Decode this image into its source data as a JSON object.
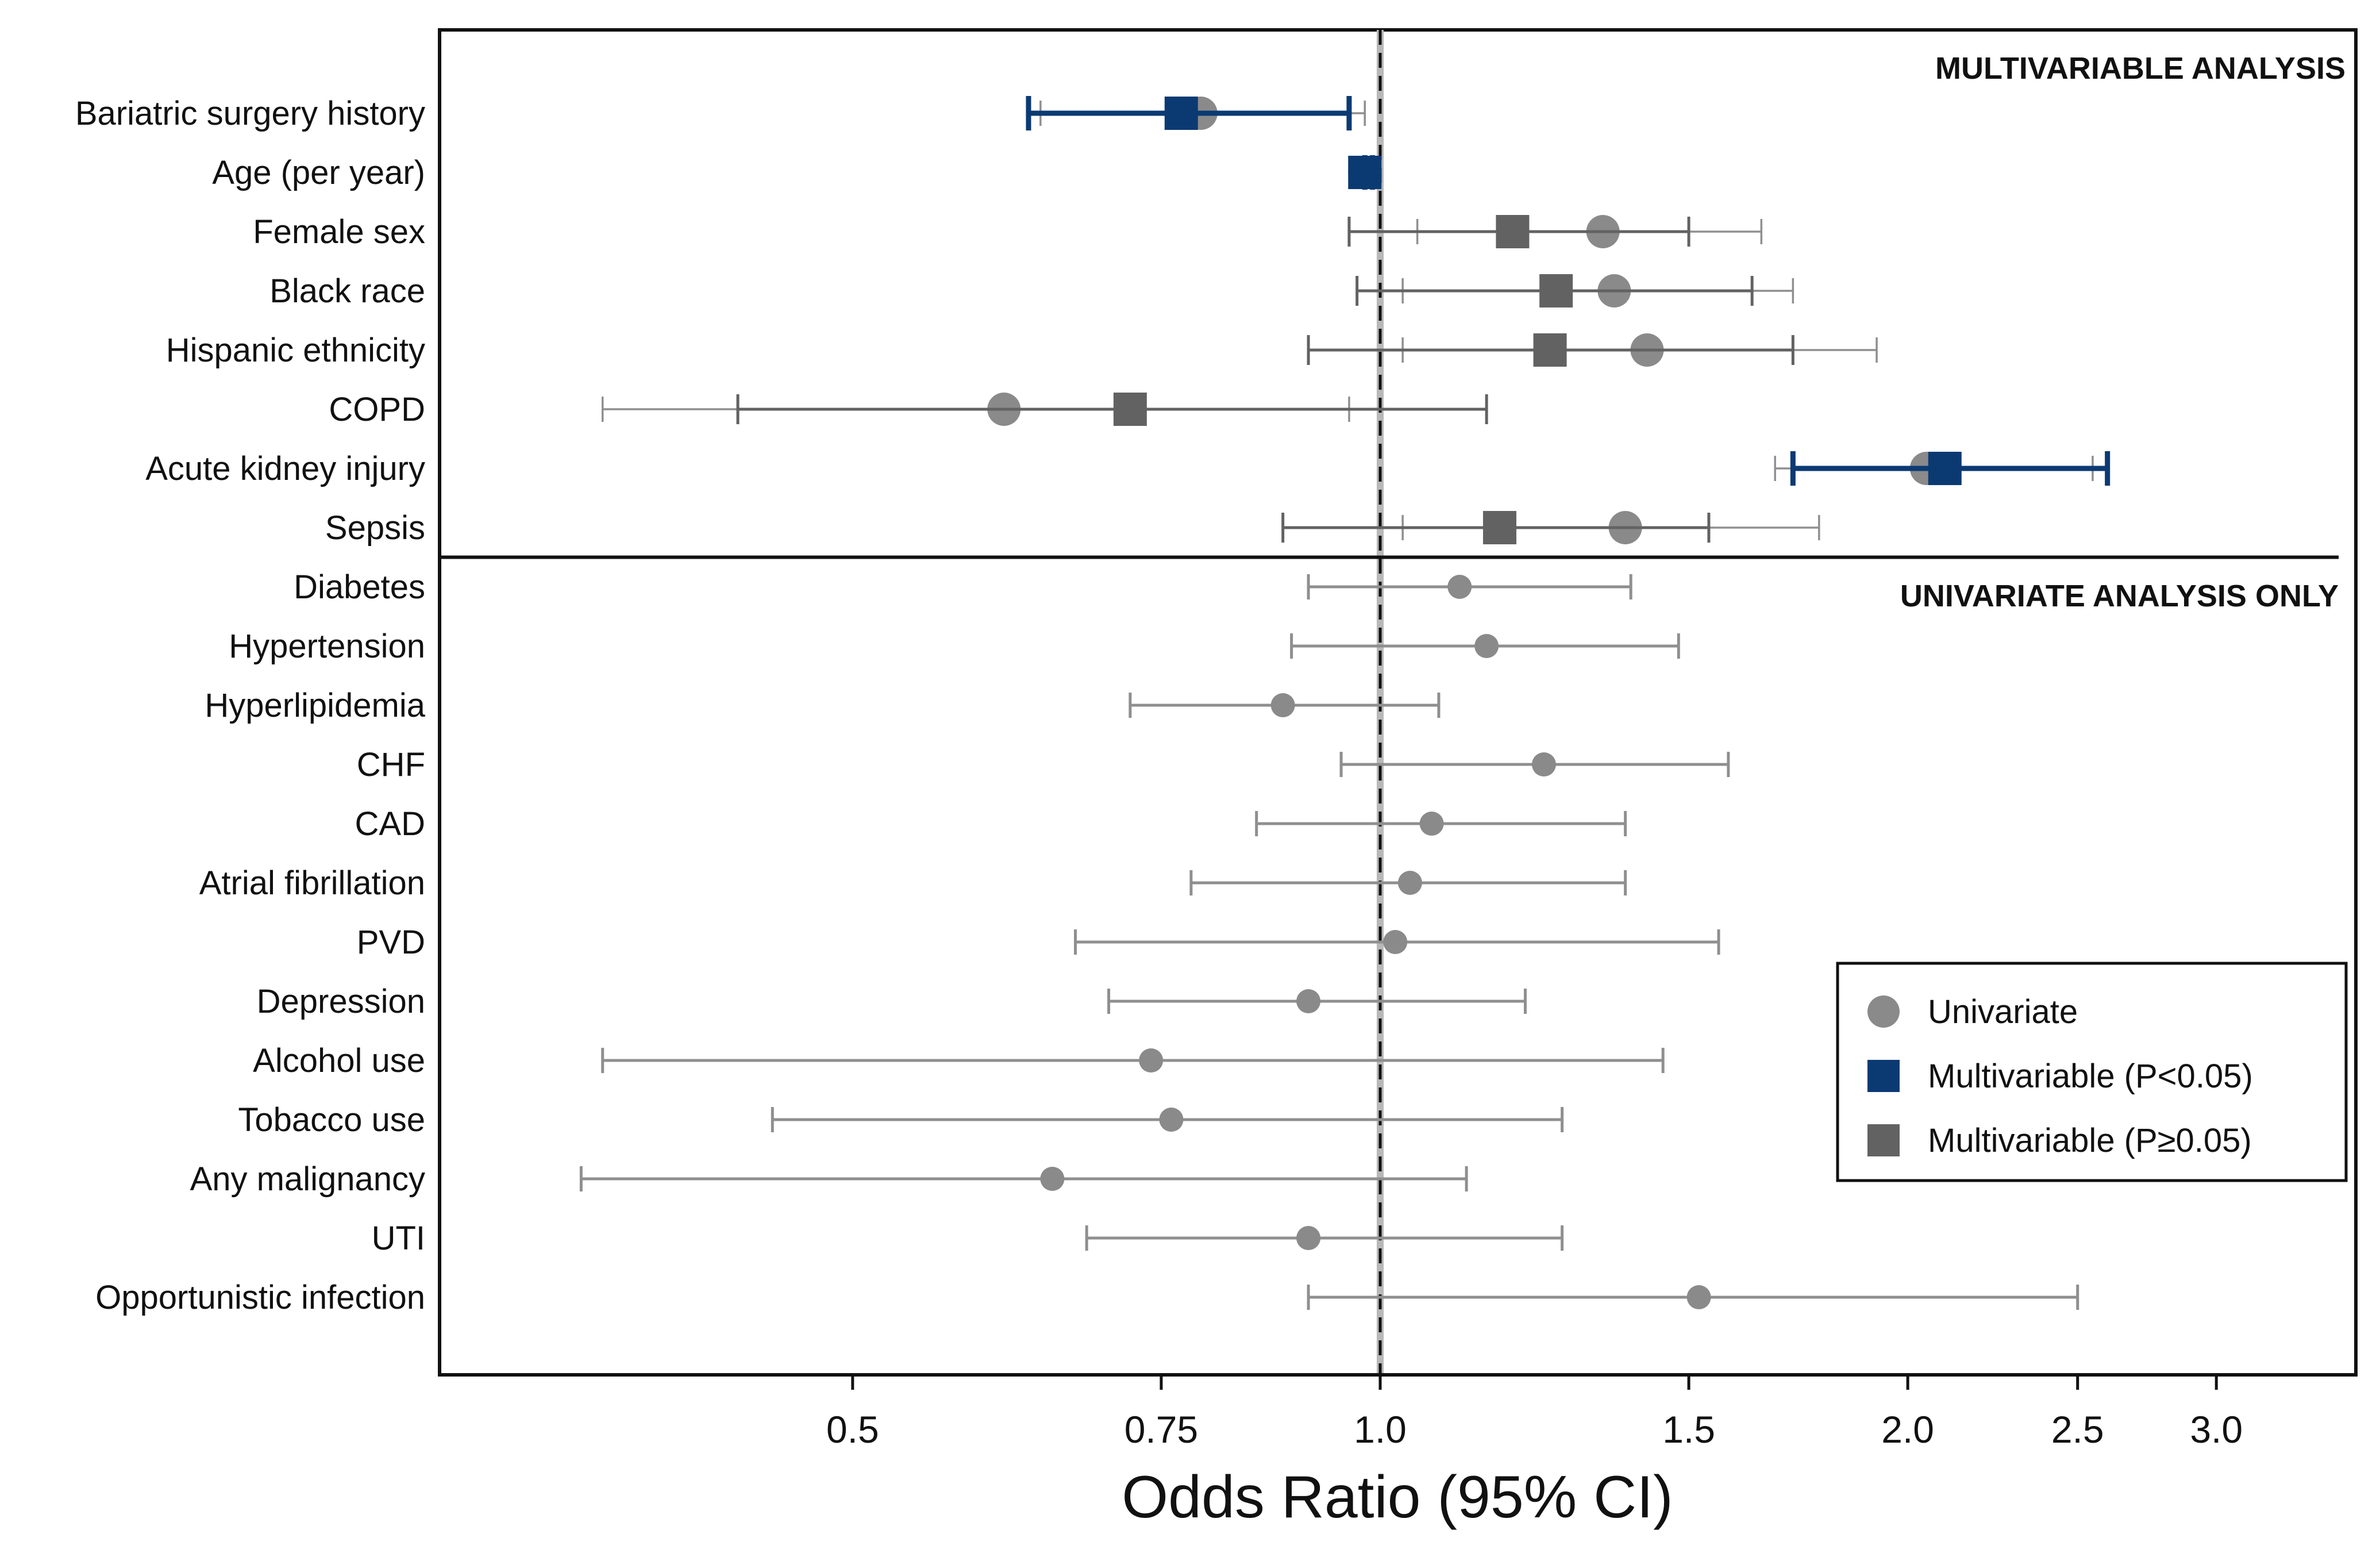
{
  "chart_data": {
    "type": "forest",
    "xlabel": "Odds Ratio (95% CI)",
    "x_scale": "log",
    "xlim": [
      0.33,
      3.5
    ],
    "x_ticks": [
      0.5,
      0.75,
      1.0,
      1.5,
      2.0,
      2.5,
      3.0
    ],
    "x_tick_labels": [
      "0.5",
      "0.75",
      "1.0",
      "1.5",
      "2.0",
      "2.5",
      "3.0"
    ],
    "reference_line": 1.0,
    "sections": [
      {
        "label": "MULTIVARIABLE ANALYSIS",
        "rows": [
          0,
          7
        ]
      },
      {
        "label": "UNIVARIATE ANALYSIS ONLY",
        "rows": [
          8,
          20
        ]
      }
    ],
    "colors": {
      "univariate": "#8a8a8a",
      "multivariable_significant": "#0b3a73",
      "multivariable_nonsignificant": "#626262"
    },
    "legend": {
      "placement": "bottom-right",
      "entries": [
        {
          "label": "Univariate",
          "marker": "circle",
          "color_key": "univariate"
        },
        {
          "label": "Multivariable (P<0.05)",
          "marker": "square",
          "color_key": "multivariable_significant"
        },
        {
          "label": "Multivariable (P≥0.05)",
          "marker": "square",
          "color_key": "multivariable_nonsignificant"
        }
      ]
    },
    "rows": [
      {
        "label": "Bariatric surgery history",
        "univariate": {
          "or": 0.79,
          "lo": 0.64,
          "hi": 0.98
        },
        "multivariable": {
          "or": 0.77,
          "lo": 0.63,
          "hi": 0.96,
          "significant": true
        }
      },
      {
        "label": "Age (per year)",
        "univariate": {
          "or": 0.98,
          "lo": 0.98,
          "hi": 0.99
        },
        "multivariable": {
          "or": 0.98,
          "lo": 0.98,
          "hi": 0.99,
          "significant": true
        }
      },
      {
        "label": "Female sex",
        "univariate": {
          "or": 1.34,
          "lo": 1.05,
          "hi": 1.65
        },
        "multivariable": {
          "or": 1.19,
          "lo": 0.96,
          "hi": 1.5,
          "significant": false
        }
      },
      {
        "label": "Black race",
        "univariate": {
          "or": 1.36,
          "lo": 1.03,
          "hi": 1.72
        },
        "multivariable": {
          "or": 1.26,
          "lo": 0.97,
          "hi": 1.63,
          "significant": false
        }
      },
      {
        "label": "Hispanic ethnicity",
        "univariate": {
          "or": 1.42,
          "lo": 1.03,
          "hi": 1.92
        },
        "multivariable": {
          "or": 1.25,
          "lo": 0.91,
          "hi": 1.72,
          "significant": false
        }
      },
      {
        "label": "COPD",
        "univariate": {
          "or": 0.61,
          "lo": 0.36,
          "hi": 0.96
        },
        "multivariable": {
          "or": 0.72,
          "lo": 0.43,
          "hi": 1.15,
          "significant": false
        }
      },
      {
        "label": "Acute kidney injury",
        "univariate": {
          "or": 2.05,
          "lo": 1.68,
          "hi": 2.55
        },
        "multivariable": {
          "or": 2.1,
          "lo": 1.72,
          "hi": 2.6,
          "significant": true
        }
      },
      {
        "label": "Sepsis",
        "univariate": {
          "or": 1.38,
          "lo": 1.03,
          "hi": 1.78
        },
        "multivariable": {
          "or": 1.17,
          "lo": 0.88,
          "hi": 1.54,
          "significant": false
        }
      },
      {
        "label": "Diabetes",
        "univariate": {
          "or": 1.11,
          "lo": 0.91,
          "hi": 1.39
        }
      },
      {
        "label": "Hypertension",
        "univariate": {
          "or": 1.15,
          "lo": 0.89,
          "hi": 1.48
        }
      },
      {
        "label": "Hyperlipidemia",
        "univariate": {
          "or": 0.88,
          "lo": 0.72,
          "hi": 1.08
        }
      },
      {
        "label": "CHF",
        "univariate": {
          "or": 1.24,
          "lo": 0.95,
          "hi": 1.58
        }
      },
      {
        "label": "CAD",
        "univariate": {
          "or": 1.07,
          "lo": 0.85,
          "hi": 1.38
        }
      },
      {
        "label": "Atrial fibrillation",
        "univariate": {
          "or": 1.04,
          "lo": 0.78,
          "hi": 1.38
        }
      },
      {
        "label": "PVD",
        "univariate": {
          "or": 1.02,
          "lo": 0.67,
          "hi": 1.56
        }
      },
      {
        "label": "Depression",
        "univariate": {
          "or": 0.91,
          "lo": 0.7,
          "hi": 1.21
        }
      },
      {
        "label": "Alcohol use",
        "univariate": {
          "or": 0.74,
          "lo": 0.36,
          "hi": 1.45
        }
      },
      {
        "label": "Tobacco use",
        "univariate": {
          "or": 0.76,
          "lo": 0.45,
          "hi": 1.27
        }
      },
      {
        "label": "Any malignancy",
        "univariate": {
          "or": 0.65,
          "lo": 0.35,
          "hi": 1.12
        }
      },
      {
        "label": "UTI",
        "univariate": {
          "or": 0.91,
          "lo": 0.68,
          "hi": 1.27
        }
      },
      {
        "label": "Opportunistic infection",
        "univariate": {
          "or": 1.52,
          "lo": 0.91,
          "hi": 2.5
        }
      }
    ]
  }
}
